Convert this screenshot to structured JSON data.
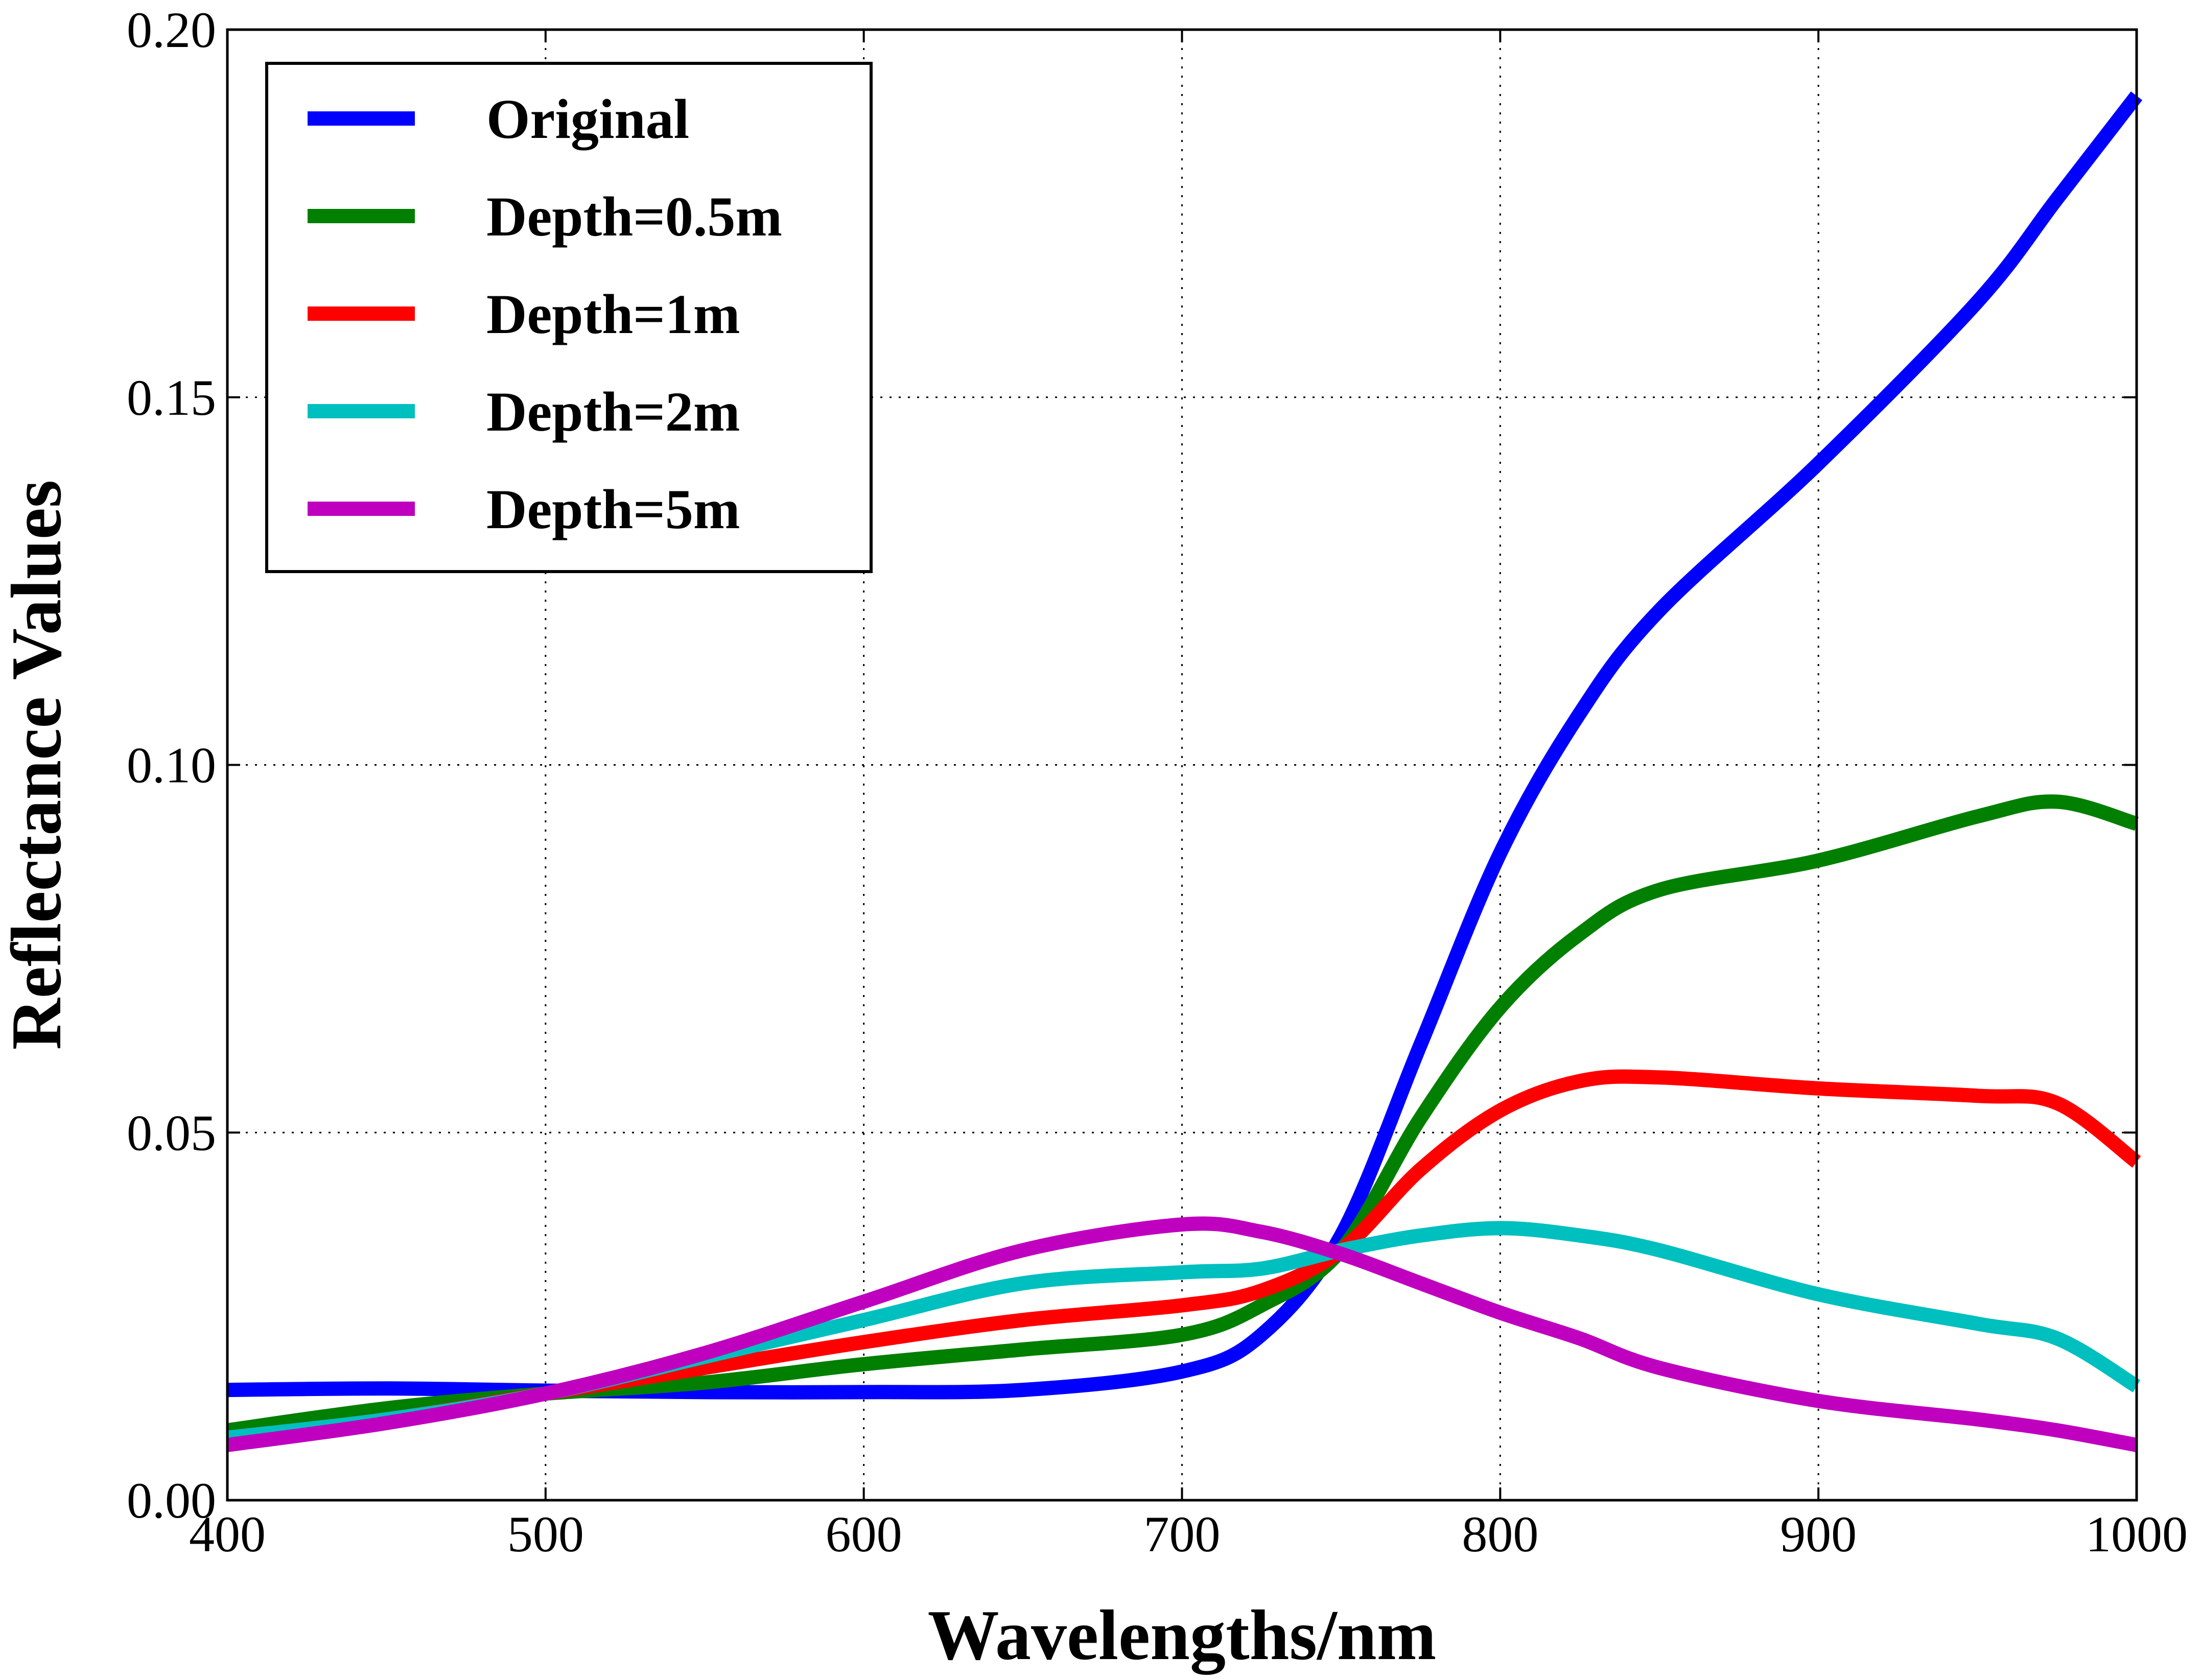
{
  "chart_data": {
    "type": "line",
    "title": "",
    "xlabel": "Wavelengths/nm",
    "ylabel": "Reflectance Values",
    "xlim": [
      400,
      1000
    ],
    "ylim": [
      0.0,
      0.2
    ],
    "xticks": [
      400,
      500,
      600,
      700,
      800,
      900,
      1000
    ],
    "xtick_labels": [
      "400",
      "500",
      "600",
      "700",
      "800",
      "900",
      "1000"
    ],
    "yticks": [
      0.0,
      0.05,
      0.1,
      0.15,
      0.2
    ],
    "ytick_labels": [
      "0.00",
      "0.05",
      "0.10",
      "0.15",
      "0.20"
    ],
    "grid": true,
    "legend_position": "top-left",
    "x": [
      400,
      450,
      500,
      550,
      600,
      650,
      700,
      725,
      750,
      775,
      800,
      825,
      850,
      900,
      950,
      975,
      1000
    ],
    "series": [
      {
        "name": "Original",
        "color": "#0000ff",
        "values": [
          0.015,
          0.0152,
          0.0149,
          0.0147,
          0.0147,
          0.015,
          0.0175,
          0.0225,
          0.036,
          0.062,
          0.088,
          0.107,
          0.121,
          0.141,
          0.163,
          0.177,
          0.191
        ]
      },
      {
        "name": "Depth=0.5m",
        "color": "#007f00",
        "values": [
          0.0095,
          0.0125,
          0.0145,
          0.016,
          0.0185,
          0.0205,
          0.0225,
          0.0265,
          0.034,
          0.052,
          0.067,
          0.077,
          0.083,
          0.087,
          0.093,
          0.095,
          0.092
        ]
      },
      {
        "name": "Depth=1m",
        "color": "#ff0000",
        "values": [
          0.0085,
          0.011,
          0.0145,
          0.018,
          0.0215,
          0.0245,
          0.0265,
          0.0285,
          0.034,
          0.045,
          0.053,
          0.057,
          0.0575,
          0.056,
          0.055,
          0.054,
          0.046
        ]
      },
      {
        "name": "Depth=2m",
        "color": "#00bfbf",
        "values": [
          0.0085,
          0.011,
          0.0145,
          0.0195,
          0.0245,
          0.0295,
          0.031,
          0.0315,
          0.034,
          0.036,
          0.037,
          0.036,
          0.034,
          0.028,
          0.024,
          0.022,
          0.0155
        ]
      },
      {
        "name": "Depth=5m",
        "color": "#bf00bf",
        "values": [
          0.0075,
          0.0105,
          0.0145,
          0.02,
          0.027,
          0.034,
          0.0375,
          0.0365,
          0.0335,
          0.0295,
          0.0255,
          0.022,
          0.018,
          0.0135,
          0.011,
          0.0095,
          0.0075
        ]
      }
    ]
  }
}
